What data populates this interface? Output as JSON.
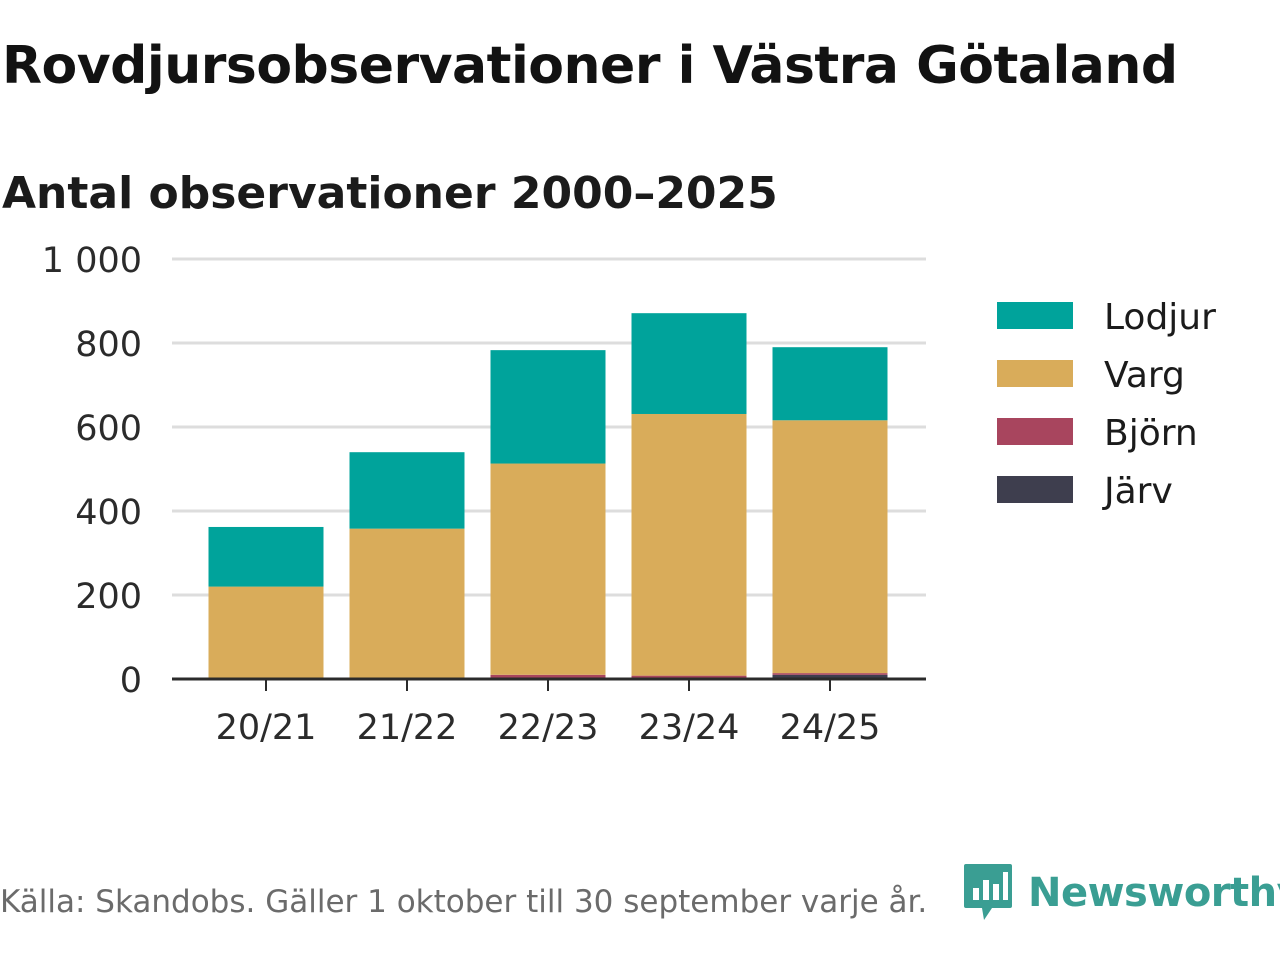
{
  "header": {
    "title": "Rovdjursobservationer i Västra Götaland",
    "subtitle": "Antal observationer 2000–2025"
  },
  "footer": {
    "source": "Källa: Skandobs. Gäller 1 oktober till 30 september varje år.",
    "brand": "Newsworthy"
  },
  "colors": {
    "Lodjur": "#00a39b",
    "Varg": "#d9ac5a",
    "Björn": "#a8455e",
    "Järv": "#3e3e4e",
    "grid": "#dddddd",
    "axis": "#2b2b2b",
    "brand": "#3a9e93"
  },
  "chart_data": {
    "type": "bar",
    "stacked": true,
    "title": "Rovdjursobservationer i Västra Götaland",
    "subtitle": "Antal observationer 2000–2025",
    "xlabel": "",
    "ylabel": "",
    "ylim": [
      0,
      1000
    ],
    "yticks": [
      0,
      200,
      400,
      600,
      800,
      1000
    ],
    "ytick_labels": [
      "0",
      "200",
      "400",
      "600",
      "800",
      "1 000"
    ],
    "grid": true,
    "legend_position": "right",
    "categories": [
      "20/21",
      "21/22",
      "22/23",
      "23/24",
      "24/25"
    ],
    "series": [
      {
        "name": "Järv",
        "values": [
          0,
          0,
          2,
          2,
          10
        ]
      },
      {
        "name": "Björn",
        "values": [
          0,
          0,
          8,
          6,
          4
        ]
      },
      {
        "name": "Varg",
        "values": [
          220,
          358,
          503,
          623,
          602
        ]
      },
      {
        "name": "Lodjur",
        "values": [
          142,
          182,
          270,
          240,
          174
        ]
      }
    ],
    "legend_order": [
      "Lodjur",
      "Varg",
      "Björn",
      "Järv"
    ]
  }
}
